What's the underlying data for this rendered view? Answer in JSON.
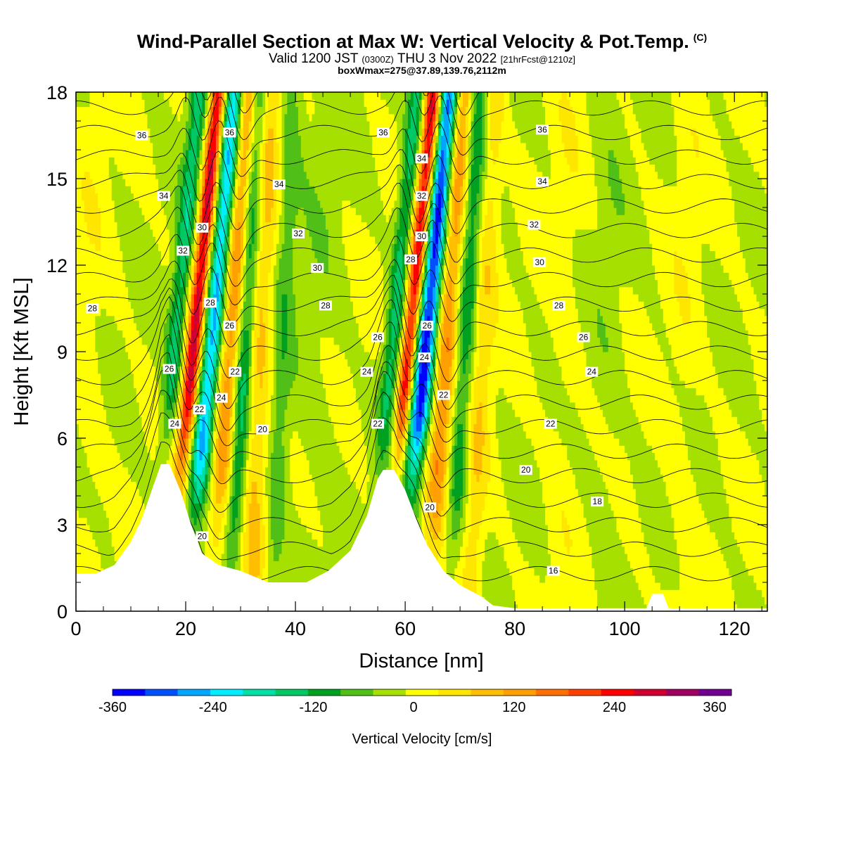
{
  "header": {
    "title": "Wind-Parallel Section at Max W: Vertical Velocity & Pot.Temp.",
    "title_mark": "(C)",
    "valid_a": "Valid 1200 JST",
    "valid_b": "(0300Z)",
    "valid_c": "THU 3 Nov 2022",
    "valid_d": "[21hrFcst@1210z]",
    "box_info": "boxWmax=275@37.89,139.76,2112m"
  },
  "chart_data": {
    "type": "heatmap",
    "xlabel": "Distance [nm]",
    "ylabel": "Height [Kft MSL]",
    "xlim": [
      0,
      126
    ],
    "ylim": [
      0,
      18
    ],
    "x_ticks": [
      0,
      20,
      40,
      60,
      80,
      100,
      120
    ],
    "y_ticks": [
      0,
      3,
      6,
      9,
      12,
      15,
      18
    ],
    "colorbar": {
      "label": "Vertical Velocity [cm/s]",
      "min": -360,
      "max": 380,
      "step": 40,
      "tick_values": [
        -360,
        -240,
        -120,
        0,
        120,
        240,
        360
      ],
      "tick_labels": [
        "-360",
        "-240",
        "-120",
        "0",
        "120",
        "240",
        "360"
      ],
      "colors": [
        "#0000ff",
        "#0050ff",
        "#00a6ff",
        "#00eeff",
        "#00e0a6",
        "#00c864",
        "#00a020",
        "#50c018",
        "#a6e000",
        "#ffff00",
        "#ffe600",
        "#ffbe00",
        "#ffa000",
        "#ff7000",
        "#ff4000",
        "#ff0000",
        "#d00030",
        "#a00060",
        "#700090"
      ]
    },
    "terrain": [
      {
        "x": 0,
        "h": 1.3
      },
      {
        "x": 3.5,
        "h": 1.3
      },
      {
        "x": 7,
        "h": 1.6
      },
      {
        "x": 10,
        "h": 2.4
      },
      {
        "x": 12,
        "h": 3.2
      },
      {
        "x": 14,
        "h": 4.3
      },
      {
        "x": 15.5,
        "h": 5.1
      },
      {
        "x": 17,
        "h": 5.1
      },
      {
        "x": 19,
        "h": 4.2
      },
      {
        "x": 21,
        "h": 3.0
      },
      {
        "x": 23,
        "h": 2.0
      },
      {
        "x": 26,
        "h": 1.6
      },
      {
        "x": 30,
        "h": 1.4
      },
      {
        "x": 35,
        "h": 1.0
      },
      {
        "x": 42,
        "h": 1.0
      },
      {
        "x": 46,
        "h": 1.4
      },
      {
        "x": 50,
        "h": 2.1
      },
      {
        "x": 53,
        "h": 3.3
      },
      {
        "x": 55,
        "h": 4.6
      },
      {
        "x": 56,
        "h": 4.9
      },
      {
        "x": 58,
        "h": 4.9
      },
      {
        "x": 60,
        "h": 4.2
      },
      {
        "x": 62,
        "h": 3.2
      },
      {
        "x": 64,
        "h": 2.3
      },
      {
        "x": 67,
        "h": 1.4
      },
      {
        "x": 70,
        "h": 0.9
      },
      {
        "x": 74,
        "h": 0.5
      },
      {
        "x": 76,
        "h": 0.2
      },
      {
        "x": 80,
        "h": 0.1
      },
      {
        "x": 104,
        "h": 0.1
      },
      {
        "x": 105,
        "h": 0.6
      },
      {
        "x": 107,
        "h": 0.6
      },
      {
        "x": 108,
        "h": 0.1
      },
      {
        "x": 126,
        "h": 0.1
      }
    ],
    "vertical_velocity_features": [
      {
        "x": 16,
        "dx_per_kft": 0.5,
        "w": 1.6,
        "value": -140
      },
      {
        "x": 19,
        "dx_per_kft": 0.5,
        "w": 1.4,
        "value": 300
      },
      {
        "x": 21.5,
        "dx_per_kft": 0.5,
        "w": 1.8,
        "value": -260
      },
      {
        "x": 25.5,
        "dx_per_kft": 0.35,
        "w": 2.0,
        "value": 150
      },
      {
        "x": 28.5,
        "dx_per_kft": 0.3,
        "w": 1.6,
        "value": -140
      },
      {
        "x": 32,
        "dx_per_kft": 0.2,
        "w": 2.2,
        "value": 90
      },
      {
        "x": 36,
        "dx_per_kft": 0.2,
        "w": 1.8,
        "value": -60
      },
      {
        "x": 55.5,
        "dx_per_kft": 0.5,
        "w": 1.6,
        "value": -140
      },
      {
        "x": 58.5,
        "dx_per_kft": 0.5,
        "w": 1.4,
        "value": 280
      },
      {
        "x": 61,
        "dx_per_kft": 0.5,
        "w": 1.8,
        "value": -330
      },
      {
        "x": 65,
        "dx_per_kft": 0.35,
        "w": 2.0,
        "value": 160
      },
      {
        "x": 68.5,
        "dx_per_kft": 0.3,
        "w": 1.8,
        "value": -110
      },
      {
        "x": 72,
        "dx_per_kft": 0.25,
        "w": 2.0,
        "value": 70
      },
      {
        "x": 2,
        "dx_per_kft": 0.05,
        "w": 3,
        "value": 20
      },
      {
        "x": 43,
        "dx_per_kft": 0.1,
        "w": 5,
        "value": -20
      },
      {
        "x": 88,
        "dx_per_kft": 0.1,
        "w": 3,
        "value": 20
      },
      {
        "x": 96,
        "dx_per_kft": 0.1,
        "w": 3,
        "value": -20
      },
      {
        "x": 110,
        "dx_per_kft": 0.1,
        "w": 3,
        "value": 20
      }
    ],
    "contours": {
      "variable": "potential temperature",
      "interval": 1,
      "labeled_values": [
        16,
        18,
        20,
        22,
        24,
        26,
        28,
        30,
        32,
        34,
        36
      ],
      "labels": [
        {
          "text": "36",
          "x": 12,
          "y": 16.5
        },
        {
          "text": "36",
          "x": 28,
          "y": 16.6
        },
        {
          "text": "36",
          "x": 56,
          "y": 16.6
        },
        {
          "text": "36",
          "x": 85,
          "y": 16.7
        },
        {
          "text": "34",
          "x": 16,
          "y": 14.4
        },
        {
          "text": "34",
          "x": 37,
          "y": 14.8
        },
        {
          "text": "34",
          "x": 63,
          "y": 15.7
        },
        {
          "text": "34",
          "x": 85,
          "y": 14.9
        },
        {
          "text": "32",
          "x": 19.5,
          "y": 12.5
        },
        {
          "text": "32",
          "x": 40.5,
          "y": 13.1
        },
        {
          "text": "32",
          "x": 63,
          "y": 14.4
        },
        {
          "text": "32",
          "x": 83.5,
          "y": 13.4
        },
        {
          "text": "30",
          "x": 23,
          "y": 13.3
        },
        {
          "text": "30",
          "x": 44,
          "y": 11.9
        },
        {
          "text": "30",
          "x": 63,
          "y": 13.0
        },
        {
          "text": "30",
          "x": 84.5,
          "y": 12.1
        },
        {
          "text": "28",
          "x": 3,
          "y": 10.5
        },
        {
          "text": "28",
          "x": 24.5,
          "y": 10.7
        },
        {
          "text": "28",
          "x": 45.5,
          "y": 10.6
        },
        {
          "text": "28",
          "x": 61,
          "y": 12.2
        },
        {
          "text": "28",
          "x": 88,
          "y": 10.6
        },
        {
          "text": "26",
          "x": 17,
          "y": 8.4
        },
        {
          "text": "26",
          "x": 28,
          "y": 9.9
        },
        {
          "text": "26",
          "x": 55,
          "y": 9.5
        },
        {
          "text": "26",
          "x": 64,
          "y": 9.9
        },
        {
          "text": "26",
          "x": 92.5,
          "y": 9.5
        },
        {
          "text": "24",
          "x": 18,
          "y": 6.5
        },
        {
          "text": "24",
          "x": 26.5,
          "y": 7.4
        },
        {
          "text": "24",
          "x": 53,
          "y": 8.3
        },
        {
          "text": "24",
          "x": 63.5,
          "y": 8.8
        },
        {
          "text": "24",
          "x": 94,
          "y": 8.3
        },
        {
          "text": "22",
          "x": 22.5,
          "y": 7.0
        },
        {
          "text": "22",
          "x": 29,
          "y": 8.3
        },
        {
          "text": "22",
          "x": 55,
          "y": 6.5
        },
        {
          "text": "22",
          "x": 67,
          "y": 7.5
        },
        {
          "text": "22",
          "x": 86.5,
          "y": 6.5
        },
        {
          "text": "20",
          "x": 23,
          "y": 2.6
        },
        {
          "text": "20",
          "x": 34,
          "y": 6.3
        },
        {
          "text": "20",
          "x": 64.5,
          "y": 3.6
        },
        {
          "text": "20",
          "x": 82,
          "y": 4.9
        },
        {
          "text": "18",
          "x": 95,
          "y": 3.8
        },
        {
          "text": "16",
          "x": 87,
          "y": 1.4
        }
      ]
    }
  }
}
